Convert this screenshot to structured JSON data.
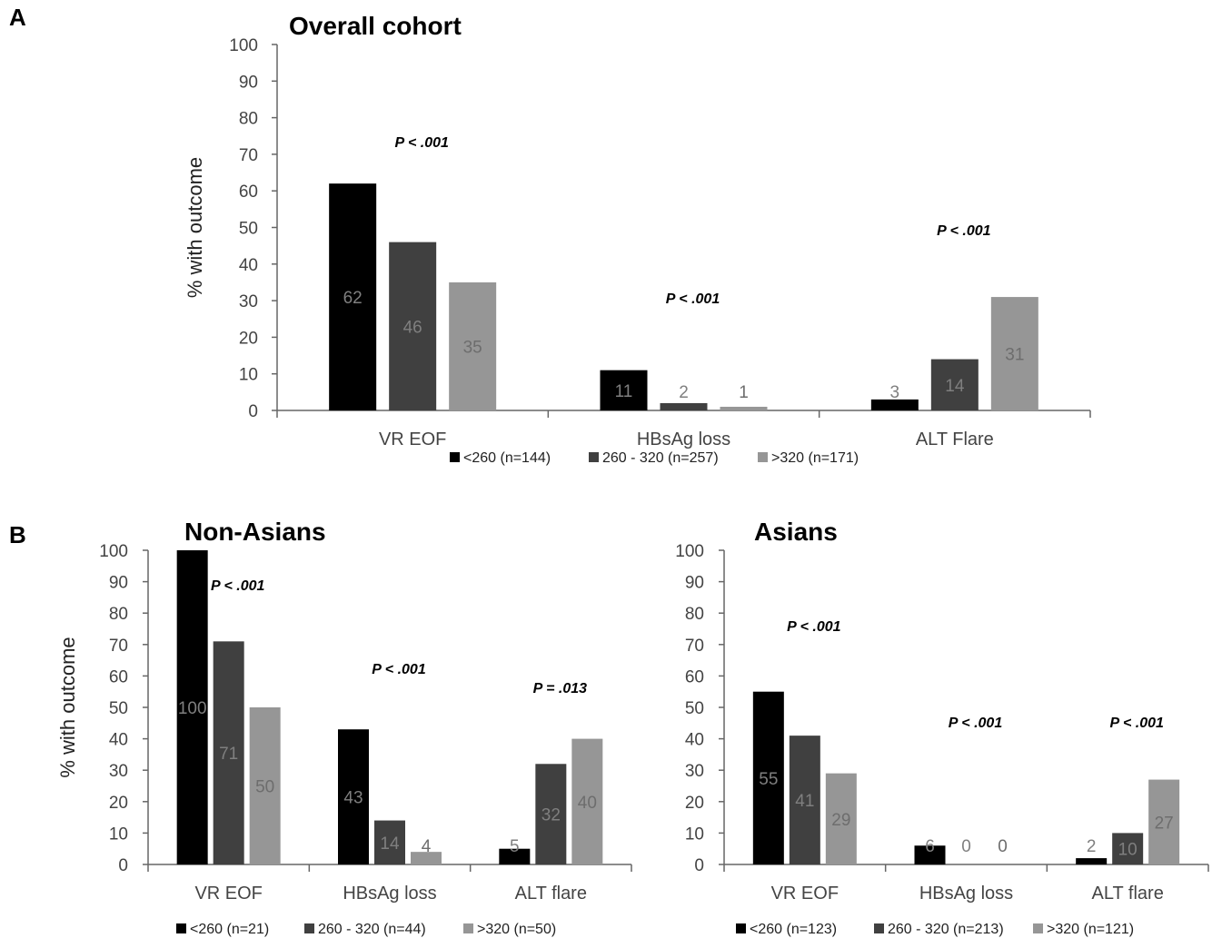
{
  "panels": [
    {
      "letter": "A"
    },
    {
      "letter": "B"
    }
  ],
  "chart_data": [
    {
      "type": "bar",
      "title": "Overall cohort",
      "ylabel": "% with outcome",
      "xlabel": "",
      "ylim": [
        0,
        100
      ],
      "yticks": [
        "0",
        "10",
        "20",
        "30",
        "40",
        "50",
        "60",
        "70",
        "80",
        "90",
        "100"
      ],
      "categories": [
        "VR EOF",
        "HBsAg loss",
        "ALT Flare"
      ],
      "series": [
        {
          "name": "<260 (n=144)",
          "values": [
            62,
            11,
            3
          ],
          "color": "#000000",
          "label_color": "#7f7f7f"
        },
        {
          "name": "260 - 320 (n=257)",
          "values": [
            46,
            2,
            14
          ],
          "color": "#404040",
          "label_color": "#7f7f7f"
        },
        {
          "name": ">320 (n=171)",
          "values": [
            35,
            1,
            31
          ],
          "color": "#969696",
          "label_color": "#6d6d6d"
        }
      ],
      "data_labels": [
        [
          "62",
          "11",
          "3"
        ],
        [
          "46",
          "2",
          "14"
        ],
        [
          "35",
          "1",
          "31"
        ]
      ],
      "pvalues": [
        {
          "category": 0,
          "text": "P < .001"
        },
        {
          "category": 1,
          "text": "P < .001"
        },
        {
          "category": 2,
          "text": "P < .001"
        }
      ],
      "legend_position": "bottom"
    },
    {
      "type": "bar",
      "title": "Non-Asians",
      "ylabel": "% with outcome",
      "xlabel": "",
      "ylim": [
        0,
        100
      ],
      "yticks": [
        "0",
        "10",
        "20",
        "30",
        "40",
        "50",
        "60",
        "70",
        "80",
        "90",
        "100"
      ],
      "categories": [
        "VR EOF",
        "HBsAg loss",
        "ALT flare"
      ],
      "series": [
        {
          "name": "<260 (n=21)",
          "values": [
            100,
            43,
            5
          ],
          "color": "#000000",
          "label_color": "#7f7f7f"
        },
        {
          "name": "260 - 320 (n=44)",
          "values": [
            71,
            14,
            32
          ],
          "color": "#404040",
          "label_color": "#7f7f7f"
        },
        {
          "name": ">320 (n=50)",
          "values": [
            50,
            4,
            40
          ],
          "color": "#969696",
          "label_color": "#6d6d6d"
        }
      ],
      "data_labels": [
        [
          "100",
          "43",
          "5"
        ],
        [
          "71",
          "14",
          "32"
        ],
        [
          "50",
          "4",
          "40"
        ]
      ],
      "pvalues": [
        {
          "category": 0,
          "text": "P < .001"
        },
        {
          "category": 1,
          "text": "P < .001"
        },
        {
          "category": 2,
          "text": "P = .013"
        }
      ],
      "legend_position": "bottom"
    },
    {
      "type": "bar",
      "title": "Asians",
      "ylabel": "",
      "xlabel": "",
      "ylim": [
        0,
        100
      ],
      "yticks": [
        "0",
        "10",
        "20",
        "30",
        "40",
        "50",
        "60",
        "70",
        "80",
        "90",
        "100"
      ],
      "categories": [
        "VR EOF",
        "HBsAg loss",
        "ALT flare"
      ],
      "series": [
        {
          "name": "<260 (n=123)",
          "values": [
            55,
            6,
            2
          ],
          "color": "#000000",
          "label_color": "#7f7f7f"
        },
        {
          "name": "260 - 320 (n=213)",
          "values": [
            41,
            0,
            10
          ],
          "color": "#404040",
          "label_color": "#7f7f7f"
        },
        {
          "name": ">320 (n=121)",
          "values": [
            29,
            0,
            27
          ],
          "color": "#969696",
          "label_color": "#6d6d6d"
        }
      ],
      "data_labels": [
        [
          "55",
          "6",
          "2"
        ],
        [
          "41",
          "0",
          "10"
        ],
        [
          "29",
          "0",
          "27"
        ]
      ],
      "pvalues": [
        {
          "category": 0,
          "text": "P < .001"
        },
        {
          "category": 1,
          "text": "P < .001"
        },
        {
          "category": 2,
          "text": "P < .001"
        }
      ],
      "legend_position": "bottom"
    }
  ]
}
